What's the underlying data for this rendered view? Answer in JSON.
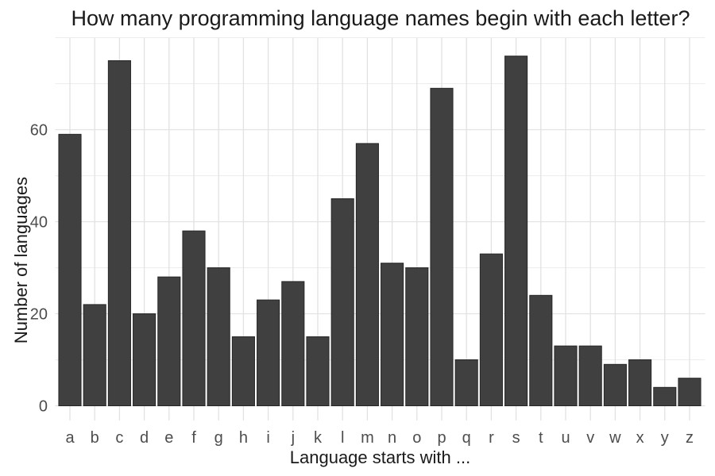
{
  "chart_data": {
    "type": "bar",
    "title": "How many programming language names begin with each letter?",
    "xlabel": "Language starts with ...",
    "ylabel": "Number of languages",
    "categories": [
      "a",
      "b",
      "c",
      "d",
      "e",
      "f",
      "g",
      "h",
      "i",
      "j",
      "k",
      "l",
      "m",
      "n",
      "o",
      "p",
      "q",
      "r",
      "s",
      "t",
      "u",
      "v",
      "w",
      "x",
      "y",
      "z"
    ],
    "values": [
      59,
      22,
      75,
      20,
      28,
      38,
      30,
      15,
      23,
      27,
      15,
      45,
      57,
      31,
      30,
      69,
      10,
      33,
      76,
      24,
      13,
      13,
      9,
      10,
      4,
      6
    ],
    "yticks": [
      0,
      20,
      40,
      60
    ],
    "yticks_minor": [
      10,
      30,
      50,
      70,
      80
    ],
    "ylim": [
      0,
      80
    ],
    "grid": true,
    "legend": false,
    "colors": {
      "bar_fill": "#404040",
      "bar_stroke": "#262626",
      "grid_major": "#e2e2e2",
      "grid_minor": "#ececec",
      "tick_label": "#4d4d4d",
      "axis_title": "#1a1a1a",
      "background": "#ffffff"
    }
  }
}
